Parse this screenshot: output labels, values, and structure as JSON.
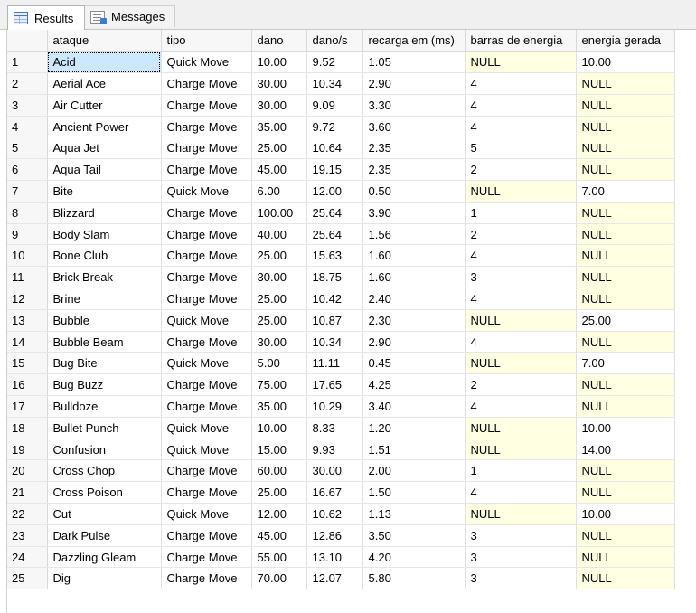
{
  "tabs": [
    {
      "label": "Results",
      "icon": "results-grid-icon"
    },
    {
      "label": "Messages",
      "icon": "messages-icon"
    }
  ],
  "colors": {
    "null_cell": "#ffffe1",
    "selected_cell": "#cce8ff"
  },
  "columns": [
    "ataque",
    "tipo",
    "dano",
    "dano/s",
    "recarga em (ms)",
    "barras de energia",
    "energia gerada"
  ],
  "rows": [
    [
      "1",
      "Acid",
      "Quick Move",
      "10.00",
      "9.52",
      "1.05",
      "NULL",
      "10.00"
    ],
    [
      "2",
      "Aerial Ace",
      "Charge Move",
      "30.00",
      "10.34",
      "2.90",
      "4",
      "NULL"
    ],
    [
      "3",
      "Air Cutter",
      "Charge Move",
      "30.00",
      "9.09",
      "3.30",
      "4",
      "NULL"
    ],
    [
      "4",
      "Ancient Power",
      "Charge Move",
      "35.00",
      "9.72",
      "3.60",
      "4",
      "NULL"
    ],
    [
      "5",
      "Aqua Jet",
      "Charge Move",
      "25.00",
      "10.64",
      "2.35",
      "5",
      "NULL"
    ],
    [
      "6",
      "Aqua Tail",
      "Charge Move",
      "45.00",
      "19.15",
      "2.35",
      "2",
      "NULL"
    ],
    [
      "7",
      "Bite",
      "Quick Move",
      "6.00",
      "12.00",
      "0.50",
      "NULL",
      "7.00"
    ],
    [
      "8",
      "Blizzard",
      "Charge Move",
      "100.00",
      "25.64",
      "3.90",
      "1",
      "NULL"
    ],
    [
      "9",
      "Body Slam",
      "Charge Move",
      "40.00",
      "25.64",
      "1.56",
      "2",
      "NULL"
    ],
    [
      "10",
      "Bone Club",
      "Charge Move",
      "25.00",
      "15.63",
      "1.60",
      "4",
      "NULL"
    ],
    [
      "11",
      "Brick Break",
      "Charge Move",
      "30.00",
      "18.75",
      "1.60",
      "3",
      "NULL"
    ],
    [
      "12",
      "Brine",
      "Charge Move",
      "25.00",
      "10.42",
      "2.40",
      "4",
      "NULL"
    ],
    [
      "13",
      "Bubble",
      "Quick Move",
      "25.00",
      "10.87",
      "2.30",
      "NULL",
      "25.00"
    ],
    [
      "14",
      "Bubble Beam",
      "Charge Move",
      "30.00",
      "10.34",
      "2.90",
      "4",
      "NULL"
    ],
    [
      "15",
      "Bug Bite",
      "Quick Move",
      "5.00",
      "11.11",
      "0.45",
      "NULL",
      "7.00"
    ],
    [
      "16",
      "Bug Buzz",
      "Charge Move",
      "75.00",
      "17.65",
      "4.25",
      "2",
      "NULL"
    ],
    [
      "17",
      "Bulldoze",
      "Charge Move",
      "35.00",
      "10.29",
      "3.40",
      "4",
      "NULL"
    ],
    [
      "18",
      "Bullet Punch",
      "Quick Move",
      "10.00",
      "8.33",
      "1.20",
      "NULL",
      "10.00"
    ],
    [
      "19",
      "Confusion",
      "Quick Move",
      "15.00",
      "9.93",
      "1.51",
      "NULL",
      "14.00"
    ],
    [
      "20",
      "Cross Chop",
      "Charge Move",
      "60.00",
      "30.00",
      "2.00",
      "1",
      "NULL"
    ],
    [
      "21",
      "Cross Poison",
      "Charge Move",
      "25.00",
      "16.67",
      "1.50",
      "4",
      "NULL"
    ],
    [
      "22",
      "Cut",
      "Quick Move",
      "12.00",
      "10.62",
      "1.13",
      "NULL",
      "10.00"
    ],
    [
      "23",
      "Dark Pulse",
      "Charge Move",
      "45.00",
      "12.86",
      "3.50",
      "3",
      "NULL"
    ],
    [
      "24",
      "Dazzling Gleam",
      "Charge Move",
      "55.00",
      "13.10",
      "4.20",
      "3",
      "NULL"
    ],
    [
      "25",
      "Dig",
      "Charge Move",
      "70.00",
      "12.07",
      "5.80",
      "3",
      "NULL"
    ]
  ]
}
